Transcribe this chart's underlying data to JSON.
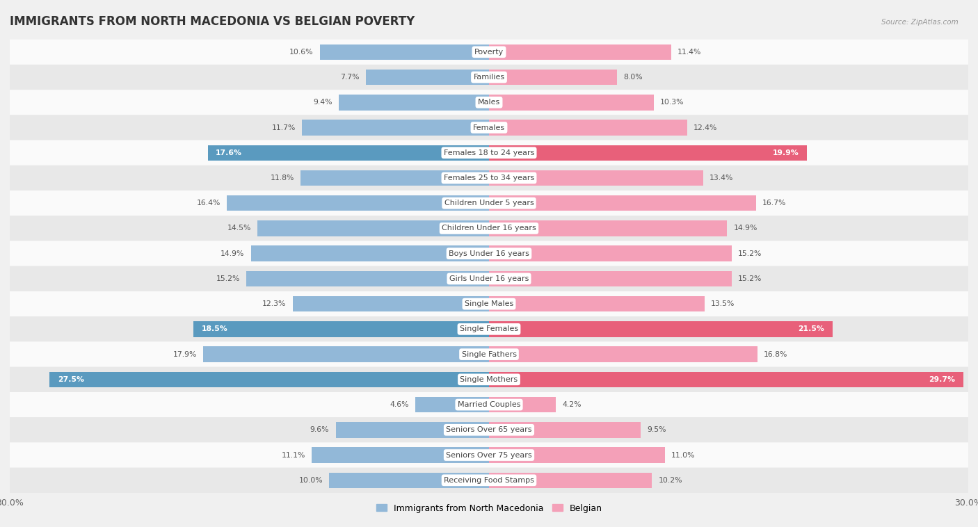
{
  "title": "IMMIGRANTS FROM NORTH MACEDONIA VS BELGIAN POVERTY",
  "source": "Source: ZipAtlas.com",
  "categories": [
    "Poverty",
    "Families",
    "Males",
    "Females",
    "Females 18 to 24 years",
    "Females 25 to 34 years",
    "Children Under 5 years",
    "Children Under 16 years",
    "Boys Under 16 years",
    "Girls Under 16 years",
    "Single Males",
    "Single Females",
    "Single Fathers",
    "Single Mothers",
    "Married Couples",
    "Seniors Over 65 years",
    "Seniors Over 75 years",
    "Receiving Food Stamps"
  ],
  "left_values": [
    10.6,
    7.7,
    9.4,
    11.7,
    17.6,
    11.8,
    16.4,
    14.5,
    14.9,
    15.2,
    12.3,
    18.5,
    17.9,
    27.5,
    4.6,
    9.6,
    11.1,
    10.0
  ],
  "right_values": [
    11.4,
    8.0,
    10.3,
    12.4,
    19.9,
    13.4,
    16.7,
    14.9,
    15.2,
    15.2,
    13.5,
    21.5,
    16.8,
    29.7,
    4.2,
    9.5,
    11.0,
    10.2
  ],
  "left_color": "#92b8d8",
  "right_color": "#f4a0b8",
  "left_highlight_color": "#5a9abf",
  "right_highlight_color": "#e8607a",
  "highlight_rows": [
    4,
    11,
    13
  ],
  "left_label": "Immigrants from North Macedonia",
  "right_label": "Belgian",
  "xlim": 30.0,
  "background_color": "#f0f0f0",
  "bar_height": 0.62,
  "row_colors": [
    "#fafafa",
    "#e8e8e8"
  ],
  "title_fontsize": 12,
  "label_fontsize": 8.0,
  "value_fontsize": 7.8
}
